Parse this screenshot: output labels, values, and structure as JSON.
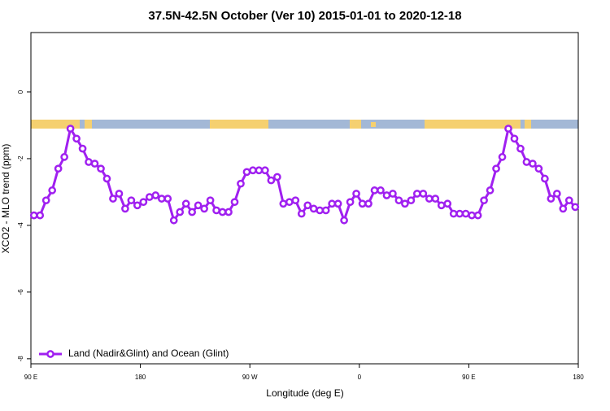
{
  "chart_data": {
    "type": "line",
    "title": "37.5N-42.5N October (Ver 10)   2015-01-01 to 2020-12-18",
    "xlabel": "Longitude (deg E)",
    "ylabel": "XCO2 - MLO trend (ppm)",
    "x": [
      92.5,
      97.5,
      102.5,
      107.5,
      112.5,
      117.5,
      122.5,
      127.5,
      132.5,
      137.5,
      142.5,
      147.5,
      152.5,
      157.5,
      162.5,
      167.5,
      172.5,
      177.5,
      182.5,
      187.5,
      192.5,
      197.5,
      202.5,
      207.5,
      212.5,
      217.5,
      222.5,
      227.5,
      232.5,
      237.5,
      242.5,
      247.5,
      252.5,
      257.5,
      262.5,
      267.5,
      272.5,
      277.5,
      282.5,
      287.5,
      292.5,
      297.5,
      302.5,
      307.5,
      312.5,
      317.5,
      322.5,
      327.5,
      332.5,
      337.5,
      342.5,
      347.5,
      352.5,
      357.5,
      362.5,
      367.5,
      372.5,
      377.5,
      382.5,
      387.5,
      392.5,
      397.5,
      402.5,
      407.5,
      412.5,
      417.5,
      422.5,
      427.5,
      432.5,
      437.5,
      442.5,
      447.5,
      452.5,
      457.5,
      462.5,
      467.5,
      472.5,
      477.5,
      482.5,
      487.5,
      492.5,
      497.5,
      502.5,
      507.5,
      512.5,
      517.5,
      522.5,
      527.5,
      532.5,
      537.5
    ],
    "series": [
      {
        "name": "Land (Nadir&Glint) and Ocean (Glint)",
        "color": "#a020f0",
        "values": [
          -3.7,
          -3.7,
          -3.25,
          -2.95,
          -2.3,
          -1.95,
          -1.1,
          -1.4,
          -1.7,
          -2.1,
          -2.15,
          -2.3,
          -2.6,
          -3.2,
          -3.05,
          -3.5,
          -3.25,
          -3.4,
          -3.3,
          -3.15,
          -3.1,
          -3.2,
          -3.2,
          -3.85,
          -3.6,
          -3.35,
          -3.6,
          -3.4,
          -3.5,
          -3.25,
          -3.55,
          -3.6,
          -3.6,
          -3.3,
          -2.75,
          -2.4,
          -2.35,
          -2.35,
          -2.35,
          -2.65,
          -2.55,
          -3.35,
          -3.3,
          -3.25,
          -3.65,
          -3.4,
          -3.5,
          -3.55,
          -3.55,
          -3.35,
          -3.35,
          -3.85,
          -3.3,
          -3.05,
          -3.35,
          -3.35,
          -2.95,
          -2.95,
          -3.1,
          -3.05,
          -3.25,
          -3.35,
          -3.25,
          -3.05,
          -3.05,
          -3.2,
          -3.2,
          -3.4,
          -3.35,
          -3.65,
          -3.65,
          -3.65,
          -3.7,
          -3.7,
          -3.25,
          -2.95,
          -2.3,
          -1.95,
          -1.1,
          -1.4,
          -1.7,
          -2.1,
          -2.15,
          -2.3,
          -2.6,
          -3.2,
          -3.05,
          -3.5,
          -3.25,
          -3.45
        ]
      }
    ],
    "xlim": [
      90,
      540
    ],
    "xticks": [
      {
        "value": 90,
        "label": "90 E"
      },
      {
        "value": 180,
        "label": "180"
      },
      {
        "value": 270,
        "label": "90 W"
      },
      {
        "value": 360,
        "label": "0"
      },
      {
        "value": 450,
        "label": "90 E"
      },
      {
        "value": 540,
        "label": "180"
      }
    ],
    "ylim": [
      -8.15,
      1.78
    ],
    "yticks": [
      0,
      -2,
      -4,
      -6,
      -8
    ],
    "legend": "bottom-left"
  }
}
